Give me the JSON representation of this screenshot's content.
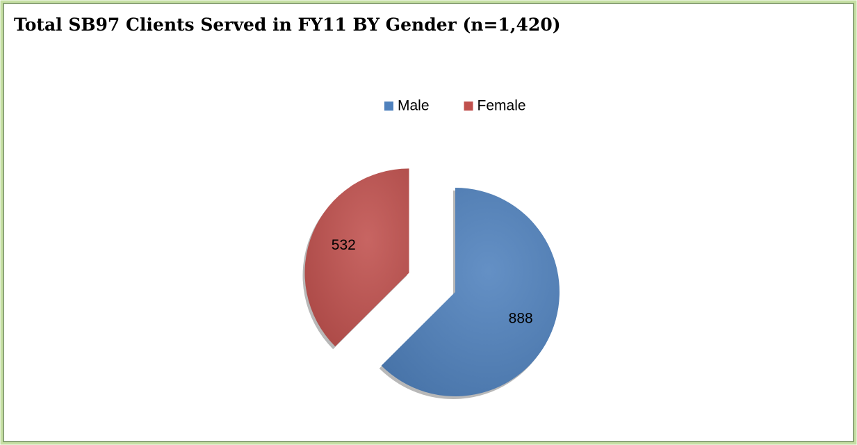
{
  "chart_data": {
    "type": "pie",
    "title": "Total SB97 Clients Served in FY11 BY Gender (n=1,420)",
    "categories": [
      "Male",
      "Female"
    ],
    "values": [
      888,
      532
    ],
    "colors": [
      "#4f81bd",
      "#c0504d"
    ],
    "legend": "top"
  }
}
